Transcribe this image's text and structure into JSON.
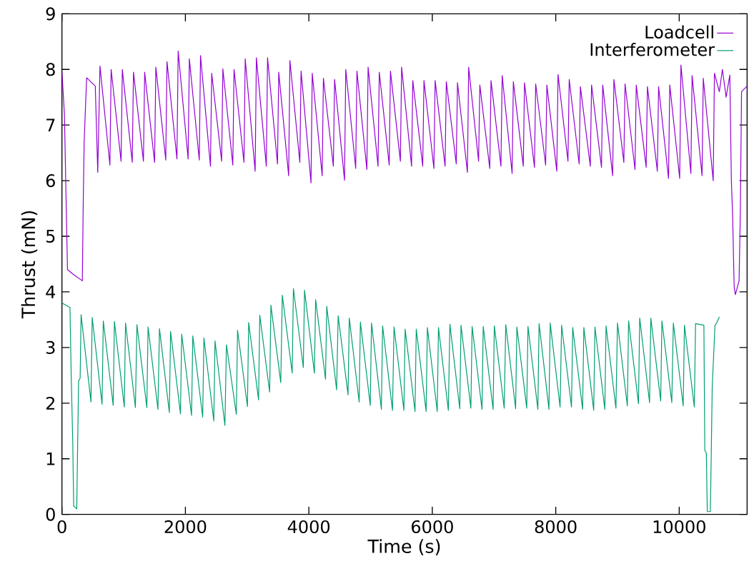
{
  "chart_data": {
    "type": "line",
    "xlabel": "Time (s)",
    "ylabel": "Thrust (mN)",
    "xlim": [
      0,
      11100
    ],
    "ylim": [
      0,
      9
    ],
    "xticks": [
      0,
      2000,
      4000,
      6000,
      8000,
      10000
    ],
    "yticks": [
      0,
      1,
      2,
      3,
      4,
      5,
      6,
      7,
      8,
      9
    ],
    "grid": false,
    "legend": "top right",
    "series": [
      {
        "name": "Loadcell",
        "color": "#9400d3",
        "x": [
          0,
          40,
          70,
          90,
          200,
          330,
          345,
          360,
          400,
          540,
          580,
          616,
          777,
          797,
          958,
          978,
          1139,
          1159,
          1320,
          1340,
          1501,
          1521,
          1682,
          1702,
          1863,
          1883,
          2044,
          2064,
          2225,
          2245,
          2406,
          2426,
          2587,
          2607,
          2768,
          2788,
          2949,
          2969,
          3130,
          3150,
          3311,
          3331,
          3492,
          3512,
          3673,
          3693,
          3854,
          3874,
          4035,
          4055,
          4216,
          4236,
          4397,
          4417,
          4578,
          4598,
          4759,
          4779,
          4940,
          4960,
          5121,
          5141,
          5302,
          5322,
          5483,
          5503,
          5664,
          5684,
          5845,
          5865,
          6026,
          6046,
          6207,
          6227,
          6388,
          6408,
          6569,
          6589,
          6750,
          6770,
          6931,
          6951,
          7112,
          7132,
          7293,
          7313,
          7474,
          7494,
          7655,
          7675,
          7836,
          7856,
          8017,
          8037,
          8198,
          8218,
          8379,
          8399,
          8560,
          8580,
          8741,
          8761,
          8922,
          8942,
          9103,
          9123,
          9284,
          9304,
          9465,
          9485,
          9646,
          9666,
          9827,
          9847,
          10008,
          10028,
          10189,
          10209,
          10370,
          10390,
          10551,
          10571,
          10650,
          10700,
          10760,
          10820,
          10845,
          10865,
          10890,
          10910,
          10970,
          10990,
          11010,
          11100
        ],
        "values": [
          7.95,
          7.2,
          5.5,
          4.4,
          4.3,
          4.2,
          5.6,
          6.7,
          7.85,
          7.7,
          6.15,
          8.06,
          6.28,
          8.0,
          6.35,
          8.0,
          6.33,
          7.95,
          6.35,
          7.95,
          6.33,
          8.04,
          6.37,
          8.14,
          6.39,
          8.33,
          6.39,
          8.19,
          6.37,
          8.25,
          6.26,
          7.93,
          6.35,
          8.01,
          6.28,
          8.0,
          6.33,
          8.19,
          6.17,
          8.21,
          6.26,
          8.21,
          6.3,
          7.95,
          6.09,
          8.16,
          6.33,
          7.97,
          5.96,
          7.93,
          6.09,
          7.84,
          6.26,
          7.82,
          6.01,
          8.0,
          6.22,
          7.97,
          6.2,
          8.04,
          6.26,
          7.95,
          6.28,
          7.97,
          6.35,
          8.04,
          6.26,
          7.8,
          6.26,
          7.8,
          6.22,
          7.8,
          6.26,
          7.78,
          6.3,
          7.76,
          6.15,
          8.04,
          6.35,
          7.72,
          6.22,
          7.8,
          6.26,
          7.89,
          6.13,
          7.78,
          6.26,
          7.76,
          6.24,
          7.74,
          6.28,
          7.72,
          6.17,
          7.91,
          6.35,
          7.82,
          6.3,
          7.69,
          6.26,
          7.72,
          6.24,
          7.72,
          6.09,
          7.82,
          6.33,
          7.74,
          6.2,
          7.72,
          6.24,
          7.69,
          6.17,
          7.69,
          6.04,
          7.72,
          6.04,
          8.08,
          6.13,
          7.89,
          6.09,
          7.84,
          6.0,
          7.93,
          7.6,
          8.0,
          7.5,
          7.9,
          6.0,
          5.4,
          4.1,
          3.95,
          4.2,
          5.4,
          7.6,
          7.7
        ]
      },
      {
        "name": "Interferometer",
        "color": "#009e73",
        "x": [
          0,
          130,
          150,
          175,
          190,
          240,
          255,
          270,
          295,
          310,
          470,
          490,
          650,
          670,
          830,
          850,
          1010,
          1030,
          1190,
          1215,
          1375,
          1395,
          1555,
          1580,
          1740,
          1760,
          1920,
          1940,
          2100,
          2120,
          2280,
          2300,
          2460,
          2480,
          2640,
          2665,
          2825,
          2845,
          3005,
          3025,
          3185,
          3205,
          3365,
          3385,
          3545,
          3570,
          3730,
          3750,
          3910,
          3930,
          4090,
          4110,
          4270,
          4290,
          4450,
          4475,
          4635,
          4655,
          4815,
          4835,
          4995,
          5015,
          5175,
          5195,
          5355,
          5380,
          5540,
          5560,
          5720,
          5740,
          5900,
          5920,
          6080,
          6100,
          6260,
          6285,
          6445,
          6465,
          6625,
          6645,
          6805,
          6825,
          6985,
          7005,
          7165,
          7190,
          7350,
          7370,
          7530,
          7550,
          7710,
          7730,
          7890,
          7910,
          8070,
          8095,
          8255,
          8275,
          8435,
          8455,
          8615,
          8635,
          8795,
          8815,
          8975,
          9000,
          9160,
          9180,
          9340,
          9360,
          9520,
          9540,
          9700,
          9720,
          9880,
          9905,
          10065,
          10085,
          10245,
          10265,
          10400,
          10415,
          10440,
          10455,
          10505,
          10520,
          10535,
          10580,
          10610,
          10650
        ],
        "values": [
          3.8,
          3.72,
          2.5,
          1.3,
          0.15,
          0.1,
          1.3,
          2.4,
          2.45,
          3.59,
          2.02,
          3.54,
          1.98,
          3.48,
          1.96,
          3.47,
          1.93,
          3.44,
          1.92,
          3.41,
          1.92,
          3.37,
          1.89,
          3.34,
          1.83,
          3.29,
          1.81,
          3.24,
          1.78,
          3.21,
          1.75,
          3.17,
          1.68,
          3.12,
          1.6,
          3.05,
          1.8,
          3.31,
          1.94,
          3.45,
          2.06,
          3.58,
          2.2,
          3.76,
          2.37,
          3.94,
          2.54,
          4.06,
          2.64,
          4.03,
          2.54,
          3.86,
          2.43,
          3.74,
          2.24,
          3.57,
          2.15,
          3.53,
          2.02,
          3.46,
          1.96,
          3.44,
          1.89,
          3.39,
          1.87,
          3.37,
          1.87,
          3.33,
          1.85,
          3.33,
          1.85,
          3.36,
          1.85,
          3.36,
          1.87,
          3.42,
          1.9,
          3.4,
          1.91,
          3.38,
          1.89,
          3.38,
          1.89,
          3.39,
          1.91,
          3.41,
          1.9,
          3.37,
          1.91,
          3.38,
          1.89,
          3.43,
          1.89,
          3.44,
          1.93,
          3.4,
          1.93,
          3.36,
          1.89,
          3.36,
          1.87,
          3.37,
          1.89,
          3.39,
          1.91,
          3.44,
          1.95,
          3.48,
          1.99,
          3.53,
          2.01,
          3.53,
          2.04,
          3.48,
          2.01,
          3.44,
          1.95,
          3.4,
          1.93,
          3.43,
          3.4,
          1.15,
          1.1,
          0.05,
          0.05,
          1.15,
          2.3,
          3.4,
          3.45,
          3.55
        ]
      }
    ]
  }
}
